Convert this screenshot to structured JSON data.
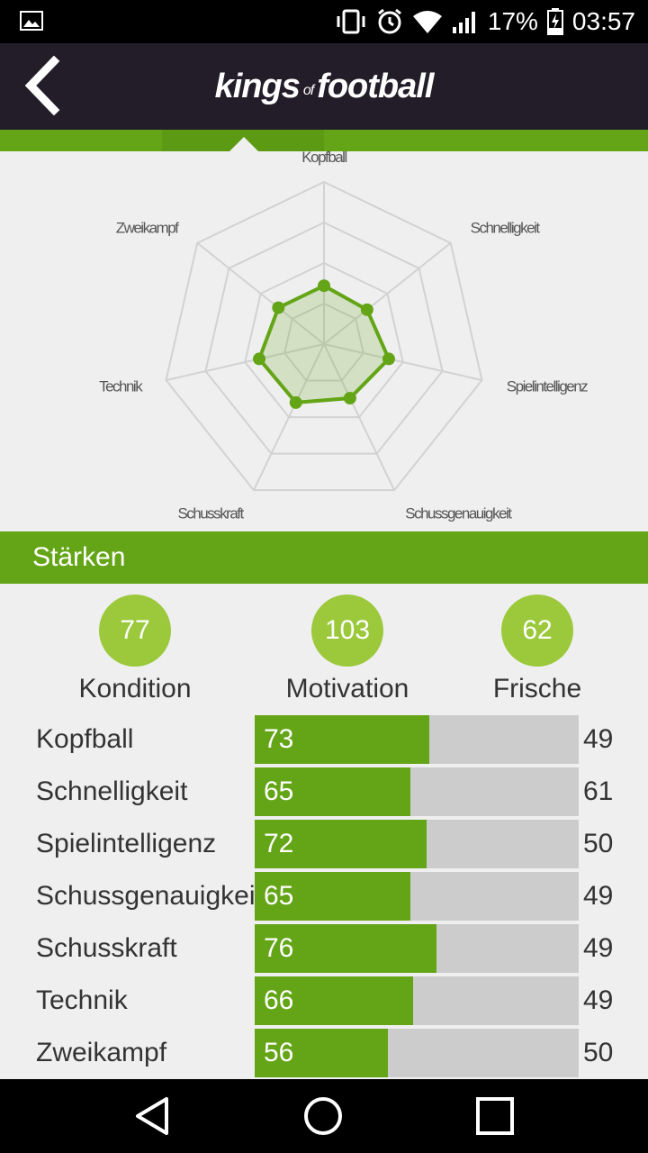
{
  "status_bar": {
    "battery": "17%",
    "time": "03:57",
    "icons": [
      "image-icon",
      "vibrate-icon",
      "alarm-icon",
      "wifi-icon",
      "signal-icon",
      "battery-icon"
    ]
  },
  "app_bar": {
    "logo": {
      "part1": "kings",
      "part2": "of",
      "part3": "football"
    },
    "back_icon": "chevron-left-icon"
  },
  "chart_data": {
    "type": "radar",
    "axes": [
      "Kopfball",
      "Schnelligkeit",
      "Spielintelligenz",
      "Schussgenauigkeit",
      "Schusskraft",
      "Technik",
      "Zweikampf"
    ],
    "values": [
      0.36,
      0.34,
      0.41,
      0.37,
      0.4,
      0.41,
      0.36
    ],
    "rings": 4,
    "grid": true
  },
  "section": {
    "title": "Stärken"
  },
  "summary": [
    {
      "value": "77",
      "label": "Kondition"
    },
    {
      "value": "103",
      "label": "Motivation"
    },
    {
      "value": "62",
      "label": "Frische"
    }
  ],
  "skills": [
    {
      "name": "Kopfball",
      "value": "73",
      "avg": "49",
      "fill": 0.54
    },
    {
      "name": "Schnelligkeit",
      "value": "65",
      "avg": "61",
      "fill": 0.48
    },
    {
      "name": "Spielintelligenz",
      "value": "72",
      "avg": "50",
      "fill": 0.53
    },
    {
      "name": "Schussgenauigkeit",
      "value": "65",
      "avg": "49",
      "fill": 0.48
    },
    {
      "name": "Schusskraft",
      "value": "76",
      "avg": "49",
      "fill": 0.56
    },
    {
      "name": "Technik",
      "value": "66",
      "avg": "49",
      "fill": 0.49
    },
    {
      "name": "Zweikampf",
      "value": "56",
      "avg": "50",
      "fill": 0.41
    }
  ],
  "colors": {
    "accent": "#64a517",
    "circle": "#9bc93b",
    "bar_bg": "#cccccc",
    "appbar": "#231d29"
  },
  "nav_bar": {
    "icons": [
      "back-triangle-icon",
      "home-circle-icon",
      "recents-square-icon"
    ]
  }
}
